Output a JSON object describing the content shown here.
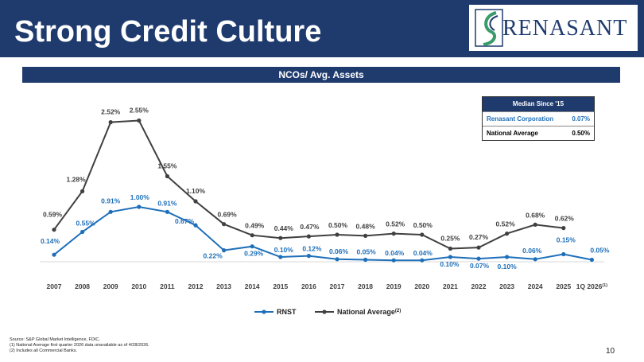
{
  "header": {
    "title": "Strong Credit Culture"
  },
  "logo": {
    "text": "RENASANT"
  },
  "subtitle": "NCOs/ Avg. Assets",
  "median_table": {
    "title": "Median Since '15",
    "rows": [
      {
        "label": "Renasant Corporation",
        "value": "0.07%"
      },
      {
        "label": "National Average",
        "value": "0.50%"
      }
    ]
  },
  "chart_data": {
    "type": "line",
    "title": "NCOs/ Avg. Assets",
    "categories": [
      "2007",
      "2008",
      "2009",
      "2010",
      "2011",
      "2012",
      "2013",
      "2014",
      "2015",
      "2016",
      "2017",
      "2018",
      "2019",
      "2020",
      "2021",
      "2022",
      "2023",
      "2024",
      "2025",
      "1Q 2026"
    ],
    "category_superscripts": {
      "1Q 2026": "(1)"
    },
    "series": [
      {
        "name": "RNST",
        "color": "#1e6fb9",
        "values": [
          0.14,
          0.55,
          0.91,
          1.0,
          0.91,
          0.67,
          0.22,
          0.29,
          0.1,
          0.12,
          0.06,
          0.05,
          0.04,
          0.04,
          0.1,
          0.07,
          0.1,
          0.06,
          0.15,
          0.05
        ],
        "labels": [
          "0.14%",
          "0.55%",
          "0.91%",
          "1.00%",
          "0.91%",
          "0.67%",
          "0.22%",
          "0.29%",
          "0.10%",
          "0.12%",
          "0.06%",
          "0.05%",
          "0.04%",
          "0.04%",
          "0.10%",
          "0.07%",
          "0.10%",
          "0.06%",
          "0.15%",
          "0.05%"
        ]
      },
      {
        "name": "National Average",
        "name_superscript": "(2)",
        "color": "#404040",
        "values": [
          0.59,
          1.28,
          2.52,
          2.55,
          1.55,
          1.1,
          0.69,
          0.49,
          0.44,
          0.47,
          0.5,
          0.48,
          0.52,
          0.5,
          0.25,
          0.27,
          0.52,
          0.68,
          0.62,
          null
        ],
        "labels": [
          "0.59%",
          "1.28%",
          "2.52%",
          "2.55%",
          "1.55%",
          "1.10%",
          "0.69%",
          "0.49%",
          "0.44%",
          "0.47%",
          "0.50%",
          "0.48%",
          "0.52%",
          "0.50%",
          "0.25%",
          "0.27%",
          "0.52%",
          "0.68%",
          "0.62%",
          null
        ]
      }
    ],
    "ylim": [
      0,
      2.6
    ],
    "grid": false,
    "legend_position": "bottom"
  },
  "footnotes": [
    "Source: S&P Global Market Intelligence, FDIC.",
    "(1)    National Average first quarter 2026 data unavailable as of 4/28/2026.",
    "(2)    Includes all Commercial Banks."
  ],
  "page_number": "10"
}
